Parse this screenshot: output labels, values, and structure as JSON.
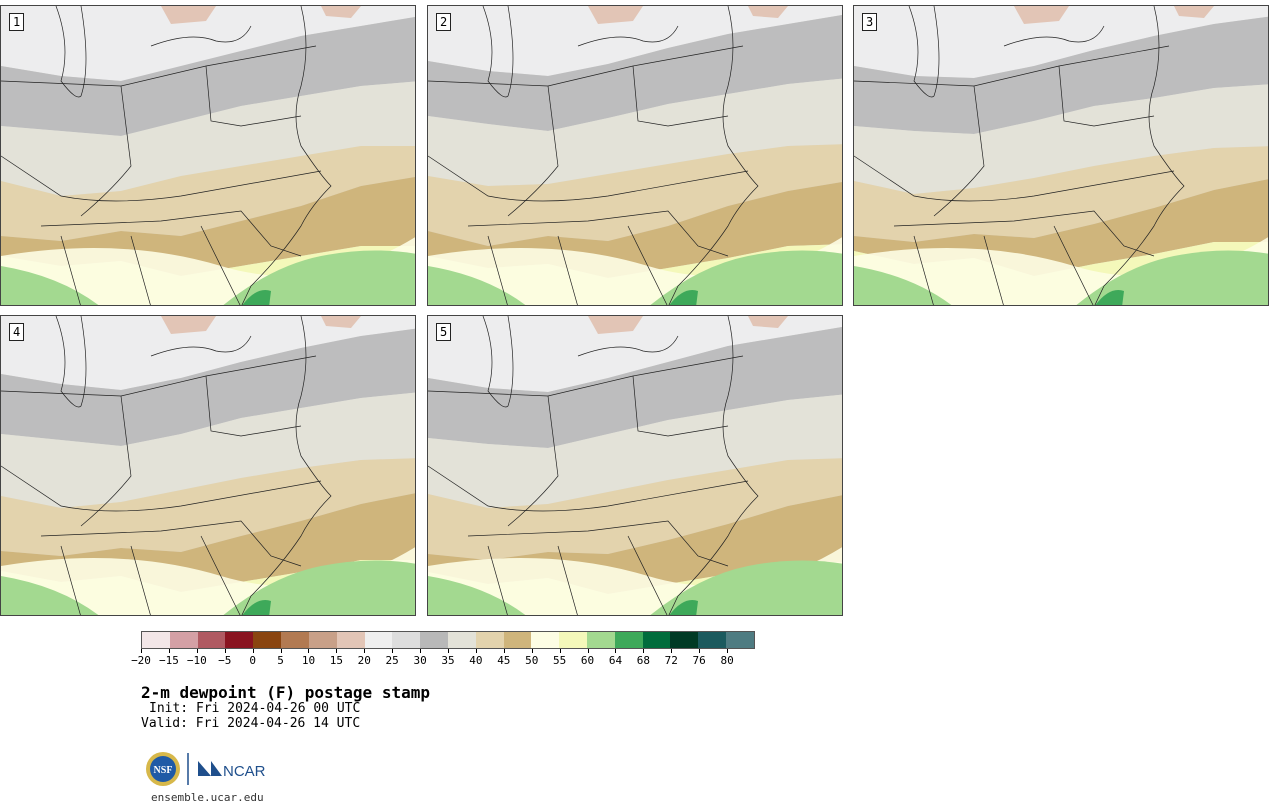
{
  "figure": {
    "title": "2-m dewpoint (F) postage stamp",
    "init_label": "Init: Fri 2024-04-26 00 UTC",
    "valid_label": "Valid: Fri 2024-04-26 14 UTC",
    "site": "ensemble.ucar.edu",
    "logos": {
      "left": "NSF",
      "right": "NCAR"
    }
  },
  "members": [
    "1",
    "2",
    "3",
    "4",
    "5"
  ],
  "colorbar": {
    "tick_labels": [
      "−20",
      "−15",
      "−10",
      "−5",
      "0",
      "5",
      "10",
      "15",
      "20",
      "25",
      "30",
      "35",
      "40",
      "45",
      "50",
      "55",
      "60",
      "64",
      "68",
      "72",
      "76",
      "80"
    ],
    "colors": [
      "#f3e7e8",
      "#d4a0a5",
      "#b05a62",
      "#8a1420",
      "#8a4510",
      "#b27a52",
      "#c8a088",
      "#e2c5b6",
      "#efefef",
      "#dddddd",
      "#b8b8b8",
      "#e3e2d8",
      "#e3d3ad",
      "#cfb57c",
      "#fdfde4",
      "#f4f8ba",
      "#a3d990",
      "#3ea95a",
      "#006c3c",
      "#003a25",
      "#1b5a5e",
      "#4f7c82"
    ]
  }
}
